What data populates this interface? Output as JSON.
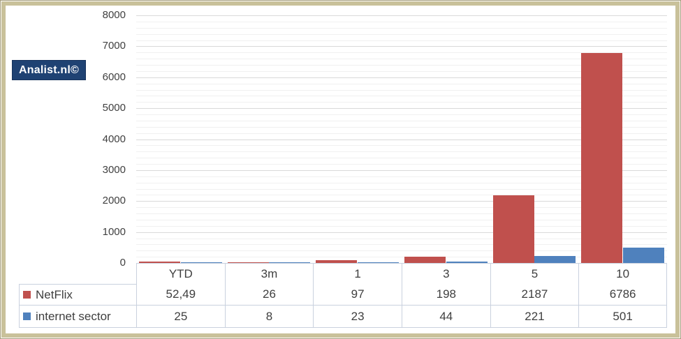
{
  "logo": {
    "text": "Analist.nl©",
    "bg_color": "#1f4273",
    "text_color": "#ffffff"
  },
  "frame": {
    "border_color": "#c9c19a",
    "outline_color": "#a59d7c"
  },
  "chart_data": {
    "type": "bar",
    "title": "",
    "xlabel": "",
    "ylabel": "",
    "categories": [
      "YTD",
      "3m",
      "1",
      "3",
      "5",
      "10"
    ],
    "series": [
      {
        "name": "NetFlix",
        "color": "#c0504d",
        "values": [
          52.49,
          26,
          97,
          198,
          2187,
          6786
        ],
        "labels": [
          "52,49",
          "26",
          "97",
          "198",
          "2187",
          "6786"
        ]
      },
      {
        "name": "internet sector",
        "color": "#4f81bd",
        "values": [
          25,
          8,
          23,
          44,
          221,
          501
        ],
        "labels": [
          "25",
          "8",
          "23",
          "44",
          "221",
          "501"
        ]
      }
    ],
    "ylim": [
      0,
      8000
    ],
    "yticks": [
      0,
      1000,
      2000,
      3000,
      4000,
      5000,
      6000,
      7000,
      8000
    ],
    "minor_tick_step": 200,
    "grid": "major+minor horizontal",
    "legend_position": "table-left",
    "major_grid_color": "#d9d9d9",
    "minor_grid_color": "#f0f0f0",
    "table_border_color": "#c9d1de"
  }
}
